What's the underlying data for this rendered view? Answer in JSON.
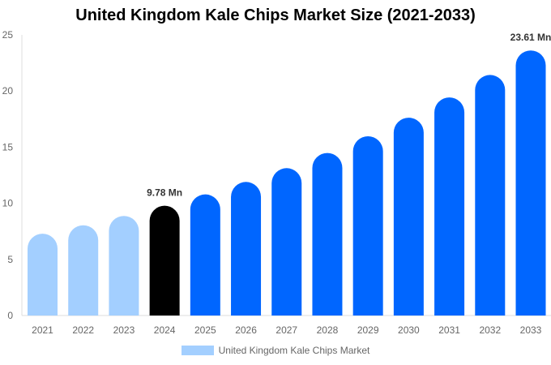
{
  "chart_data": {
    "type": "bar",
    "title": "United Kingdom Kale Chips Market Size (2021-2033)",
    "categories": [
      "2021",
      "2022",
      "2023",
      "2024",
      "2025",
      "2026",
      "2027",
      "2028",
      "2029",
      "2030",
      "2031",
      "2032",
      "2033"
    ],
    "series": [
      {
        "name": "United Kingdom Kale Chips Market",
        "values": [
          7.29,
          8.04,
          8.87,
          9.78,
          10.79,
          11.9,
          13.13,
          14.48,
          15.97,
          17.62,
          19.43,
          21.43,
          23.61
        ]
      }
    ],
    "data_labels": {
      "3": "9.78 Mn",
      "12": "23.61 Mn"
    },
    "yticks": [
      0,
      5,
      10,
      15,
      20,
      25
    ],
    "ylim": [
      0,
      25
    ],
    "xlabel": "",
    "ylabel": "",
    "grid": false,
    "legend": "bottom",
    "colors": {
      "historical": "#a3cfff",
      "current": "#000000",
      "forecast": "#0066ff"
    }
  }
}
